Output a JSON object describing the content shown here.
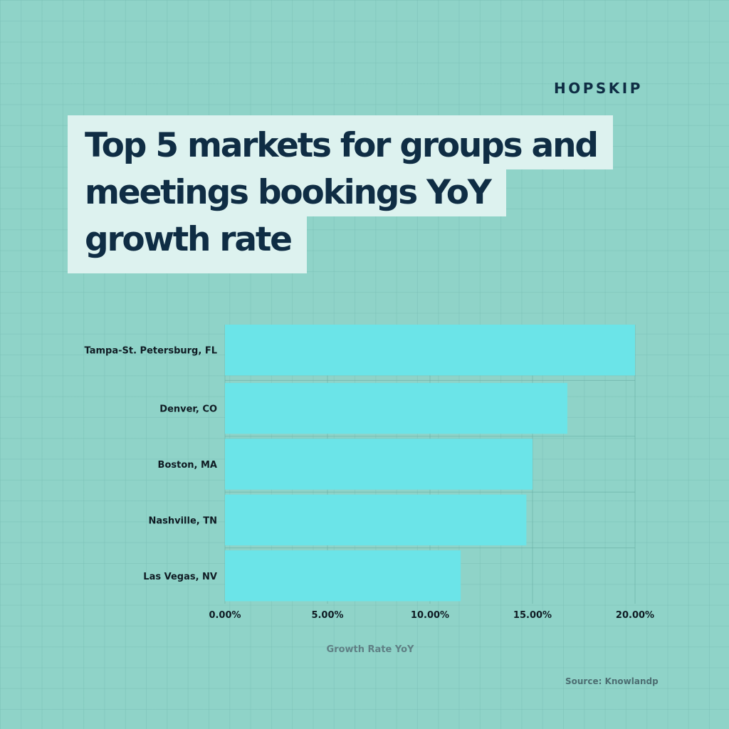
{
  "brand": "HOPSKIP",
  "title_lines": [
    "Top 5 markets for groups and",
    "meetings bookings YoY",
    "growth rate"
  ],
  "source": "Source: Knowlandp",
  "colors": {
    "bar": "#6be4e8",
    "text_dark": "#0f2d44",
    "background": "#8fd3c8",
    "title_box": "#ddf2ef"
  },
  "chart_data": {
    "type": "bar",
    "orientation": "horizontal",
    "categories": [
      "Tampa-St. Petersburg, FL",
      "Denver, CO",
      "Boston, MA",
      "Nashville, TN",
      "Las Vegas, NV"
    ],
    "values": [
      20.0,
      16.7,
      15.0,
      14.7,
      11.5
    ],
    "xlabel": "Growth Rate YoY",
    "ylabel": "",
    "xlim": [
      0,
      20
    ],
    "xticks": [
      0,
      5,
      10,
      15,
      20
    ],
    "xtick_labels": [
      "0.00%",
      "5.00%",
      "10.00%",
      "15.00%",
      "20.00%"
    ],
    "grid": true
  }
}
